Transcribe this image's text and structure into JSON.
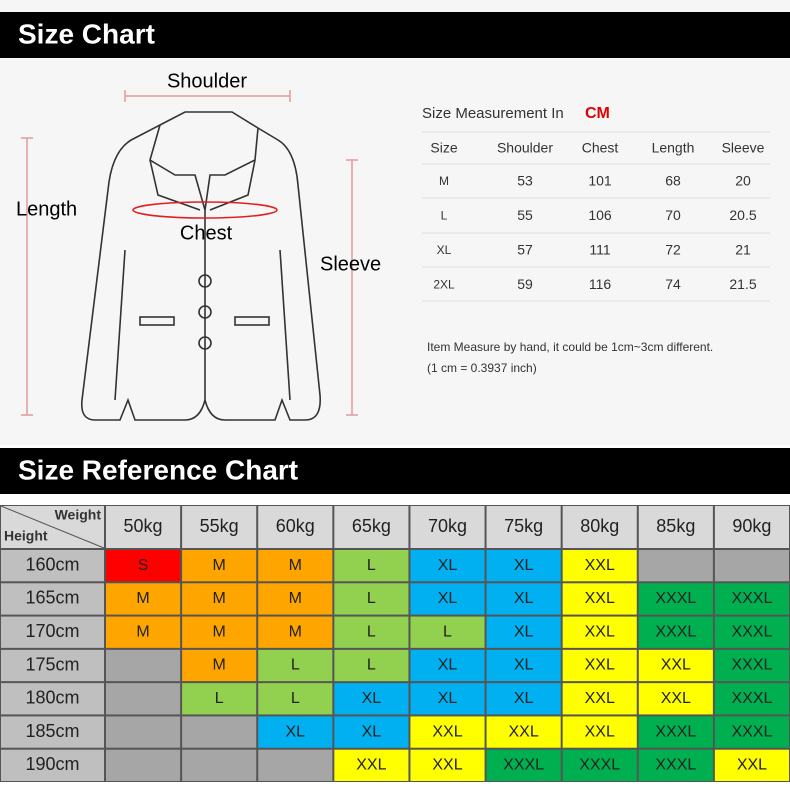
{
  "header": {
    "title": "Size Chart"
  },
  "diagram": {
    "labels": {
      "shoulder": "Shoulder",
      "length": "Length",
      "chest": "Chest",
      "sleeve": "Sleeve"
    }
  },
  "measurement": {
    "title": "Size Measurement In",
    "unit": "CM",
    "columns": [
      "Size",
      "Shoulder",
      "Chest",
      "Length",
      "Sleeve"
    ],
    "rows": [
      [
        "M",
        53,
        101,
        68,
        20
      ],
      [
        "L",
        55,
        106,
        70,
        20.5
      ],
      [
        "XL",
        57,
        111,
        72,
        21
      ],
      [
        "2XL",
        59,
        116,
        74,
        21.5
      ]
    ],
    "notes": [
      "Item Measure by hand, it could be 1cm~3cm different.",
      "(1 cm = 0.3937 inch)"
    ]
  },
  "reference": {
    "title": "Size Reference Chart",
    "corner": {
      "weight": "Weight",
      "height": "Height"
    },
    "weights": [
      "50kg",
      "55kg",
      "60kg",
      "65kg",
      "70kg",
      "75kg",
      "80kg",
      "85kg",
      "90kg"
    ],
    "heights": [
      "160cm",
      "165cm",
      "170cm",
      "175cm",
      "180cm",
      "185cm",
      "190cm"
    ],
    "rows": [
      [
        "S",
        "M",
        "M",
        "L",
        "XL",
        "XL",
        "XXL",
        null,
        null
      ],
      [
        "M",
        "M",
        "M",
        "L",
        "XL",
        "XL",
        "XXL",
        "XXXL",
        "XXXL"
      ],
      [
        "M",
        "M",
        "M",
        "L",
        "L",
        "XL",
        "XXL",
        "XXXL",
        "XXXL"
      ],
      [
        null,
        "M",
        "L",
        "L",
        "XL",
        "XL",
        "XXL",
        "XXL",
        "XXXL"
      ],
      [
        null,
        "L",
        "L",
        "XL",
        "XL",
        "XL",
        "XXL",
        "XXL",
        "XXXL"
      ],
      [
        null,
        null,
        "XL",
        "XL",
        "XXL",
        "XXL",
        "XXL",
        "XXXL",
        "XXXL"
      ],
      [
        null,
        null,
        null,
        "XXL",
        "XXL",
        "XXXL",
        "XXXL",
        "XXXL",
        "XXL"
      ]
    ],
    "size_colors": {
      "S": "#ff0000",
      "M": "#ffa500",
      "L": "#92d050",
      "XL": "#00b0f0",
      "XXL": "#ffff00",
      "XXXL": "#00b050"
    },
    "empty_color": "#a6a6a6"
  }
}
